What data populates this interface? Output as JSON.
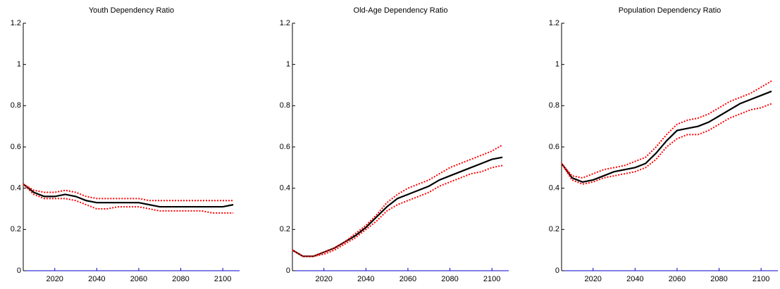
{
  "chart_data": [
    {
      "type": "line",
      "title": "Youth Dependency Ratio",
      "x": [
        2005,
        2010,
        2015,
        2020,
        2025,
        2030,
        2035,
        2040,
        2045,
        2050,
        2055,
        2060,
        2065,
        2070,
        2075,
        2080,
        2085,
        2090,
        2095,
        2100,
        2105
      ],
      "xlim": [
        2005,
        2108
      ],
      "xticks": [
        2020,
        2040,
        2060,
        2080,
        2100
      ],
      "ylim": [
        0,
        1.2
      ],
      "yticks": [
        0,
        0.2,
        0.4,
        0.6,
        0.8,
        1,
        1.2
      ],
      "axis_color": "#0000cc",
      "series": [
        {
          "color": "#000000",
          "style": "solid",
          "values": [
            0.42,
            0.38,
            0.36,
            0.36,
            0.37,
            0.36,
            0.34,
            0.33,
            0.33,
            0.33,
            0.33,
            0.33,
            0.32,
            0.31,
            0.31,
            0.31,
            0.31,
            0.31,
            0.31,
            0.31,
            0.32
          ]
        },
        {
          "color": "#ff0000",
          "style": "dotted",
          "values": [
            0.42,
            0.39,
            0.38,
            0.38,
            0.39,
            0.38,
            0.36,
            0.35,
            0.35,
            0.35,
            0.35,
            0.35,
            0.34,
            0.34,
            0.34,
            0.34,
            0.34,
            0.34,
            0.34,
            0.34,
            0.34
          ]
        },
        {
          "color": "#ff0000",
          "style": "dotted",
          "values": [
            0.42,
            0.37,
            0.35,
            0.35,
            0.35,
            0.34,
            0.32,
            0.3,
            0.3,
            0.31,
            0.31,
            0.31,
            0.3,
            0.29,
            0.29,
            0.29,
            0.29,
            0.29,
            0.28,
            0.28,
            0.28
          ]
        }
      ]
    },
    {
      "type": "line",
      "title": "Old-Age Dependency Ratio",
      "x": [
        2005,
        2010,
        2015,
        2020,
        2025,
        2030,
        2035,
        2040,
        2045,
        2050,
        2055,
        2060,
        2065,
        2070,
        2075,
        2080,
        2085,
        2090,
        2095,
        2100,
        2105
      ],
      "xlim": [
        2005,
        2108
      ],
      "xticks": [
        2020,
        2040,
        2060,
        2080,
        2100
      ],
      "ylim": [
        0,
        1.2
      ],
      "yticks": [
        0,
        0.2,
        0.4,
        0.6,
        0.8,
        1,
        1.2
      ],
      "axis_color": "#0000cc",
      "series": [
        {
          "color": "#000000",
          "style": "solid",
          "values": [
            0.1,
            0.07,
            0.07,
            0.09,
            0.11,
            0.14,
            0.17,
            0.21,
            0.26,
            0.31,
            0.35,
            0.37,
            0.39,
            0.41,
            0.44,
            0.46,
            0.48,
            0.5,
            0.52,
            0.54,
            0.55
          ]
        },
        {
          "color": "#ff0000",
          "style": "dotted",
          "values": [
            0.1,
            0.07,
            0.07,
            0.09,
            0.11,
            0.14,
            0.18,
            0.22,
            0.27,
            0.33,
            0.37,
            0.4,
            0.42,
            0.44,
            0.47,
            0.5,
            0.52,
            0.54,
            0.56,
            0.58,
            0.61
          ]
        },
        {
          "color": "#ff0000",
          "style": "dotted",
          "values": [
            0.1,
            0.07,
            0.07,
            0.08,
            0.1,
            0.13,
            0.16,
            0.2,
            0.24,
            0.29,
            0.32,
            0.34,
            0.36,
            0.38,
            0.41,
            0.43,
            0.45,
            0.47,
            0.48,
            0.5,
            0.51
          ]
        }
      ]
    },
    {
      "type": "line",
      "title": "Population Dependency Ratio",
      "x": [
        2005,
        2010,
        2015,
        2020,
        2025,
        2030,
        2035,
        2040,
        2045,
        2050,
        2055,
        2060,
        2065,
        2070,
        2075,
        2080,
        2085,
        2090,
        2095,
        2100,
        2105
      ],
      "xlim": [
        2005,
        2108
      ],
      "xticks": [
        2020,
        2040,
        2060,
        2080,
        2100
      ],
      "ylim": [
        0,
        1.2
      ],
      "yticks": [
        0,
        0.2,
        0.4,
        0.6,
        0.8,
        1,
        1.2
      ],
      "axis_color": "#0000cc",
      "series": [
        {
          "color": "#000000",
          "style": "solid",
          "values": [
            0.52,
            0.45,
            0.43,
            0.44,
            0.46,
            0.48,
            0.49,
            0.5,
            0.52,
            0.57,
            0.63,
            0.68,
            0.69,
            0.7,
            0.72,
            0.75,
            0.78,
            0.81,
            0.83,
            0.85,
            0.87
          ]
        },
        {
          "color": "#ff0000",
          "style": "dotted",
          "values": [
            0.52,
            0.46,
            0.45,
            0.47,
            0.49,
            0.5,
            0.51,
            0.53,
            0.55,
            0.6,
            0.66,
            0.71,
            0.73,
            0.74,
            0.76,
            0.79,
            0.82,
            0.84,
            0.86,
            0.89,
            0.92
          ]
        },
        {
          "color": "#ff0000",
          "style": "dotted",
          "values": [
            0.52,
            0.44,
            0.42,
            0.43,
            0.45,
            0.46,
            0.47,
            0.48,
            0.5,
            0.54,
            0.6,
            0.64,
            0.66,
            0.66,
            0.68,
            0.71,
            0.74,
            0.76,
            0.78,
            0.79,
            0.81
          ]
        }
      ]
    }
  ]
}
